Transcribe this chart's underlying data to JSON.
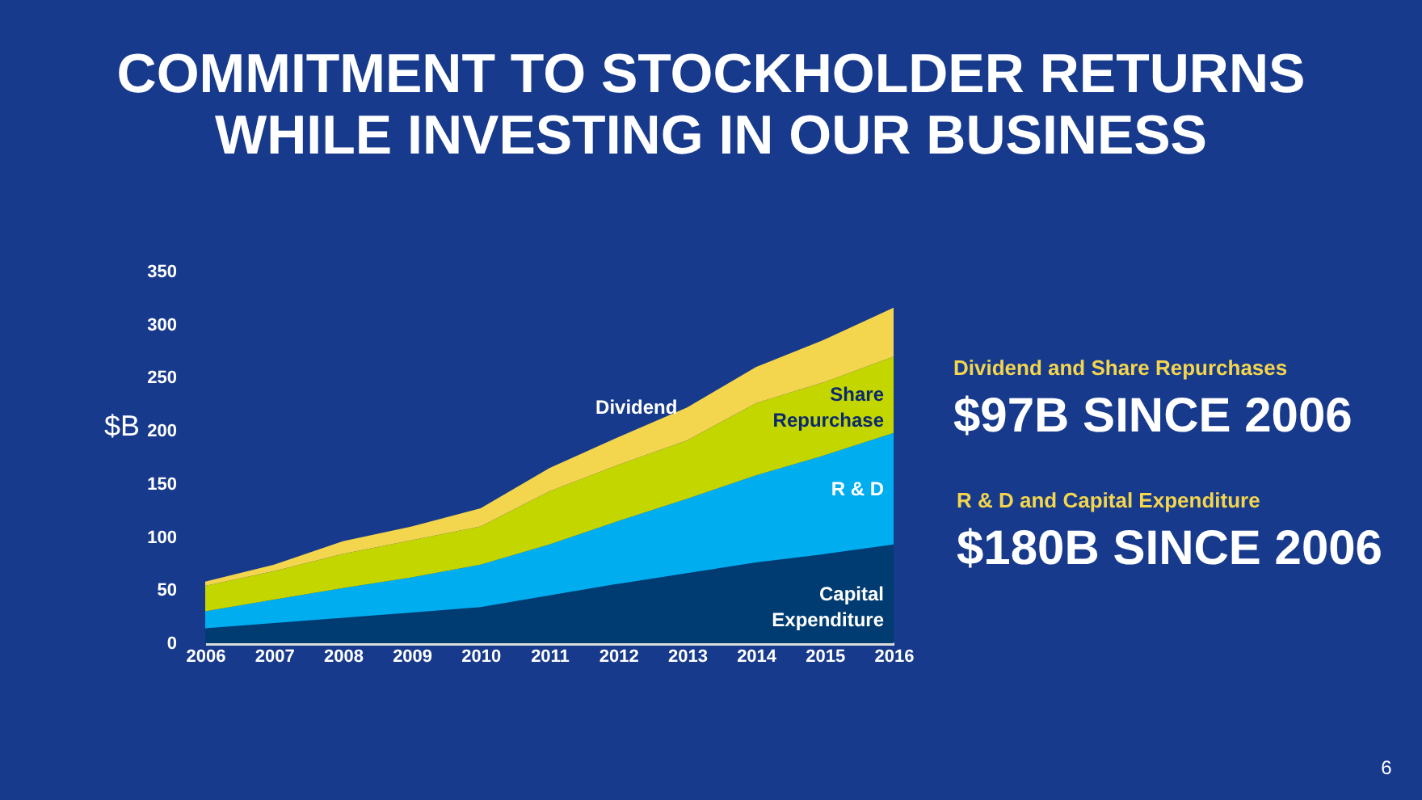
{
  "chart_data": {
    "type": "area",
    "stacked": true,
    "title": "COMMITMENT TO STOCKHOLDER RETURNS\nWHILE INVESTING IN OUR BUSINESS",
    "categories": [
      "2006",
      "2007",
      "2008",
      "2009",
      "2010",
      "2011",
      "2012",
      "2013",
      "2014",
      "2015",
      "2016"
    ],
    "series": [
      {
        "name": "Capital\nExpenditure",
        "color": "#003c71",
        "values": [
          14,
          19,
          24,
          29,
          34,
          45,
          56,
          66,
          76,
          84,
          93
        ]
      },
      {
        "name": "R & D",
        "color": "#00aeef",
        "values": [
          16,
          22,
          28,
          33,
          40,
          48,
          59,
          70,
          82,
          93,
          105
        ]
      },
      {
        "name": "Share\nRepurchase",
        "color": "#c4d600",
        "values": [
          24,
          27,
          32,
          35,
          36,
          50,
          53,
          55,
          68,
          69,
          72
        ]
      },
      {
        "name": "Dividend",
        "color": "#f3d54e",
        "values": [
          4,
          6,
          12,
          13,
          17,
          22,
          26,
          31,
          34,
          40,
          46
        ]
      }
    ],
    "ylabel": "$B",
    "ylim": [
      0,
      350
    ],
    "yticks": [
      0,
      50,
      100,
      150,
      200,
      250,
      300,
      350
    ],
    "grid": false,
    "legend": false,
    "annotations": [
      "Dividend and Share Repurchases",
      "$97B SINCE 2006",
      "R & D and Capital Expenditure",
      "$180B SINCE 2006",
      "6"
    ]
  }
}
